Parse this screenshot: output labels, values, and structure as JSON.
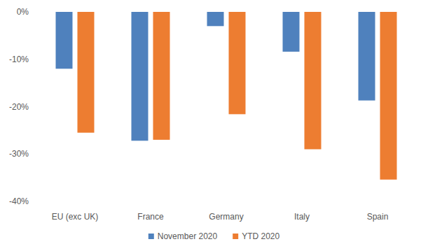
{
  "chart_data": {
    "type": "bar",
    "categories": [
      "EU (exc UK)",
      "France",
      "Germany",
      "Italy",
      "Spain"
    ],
    "series": [
      {
        "name": "November 2020",
        "color": "#4f81bd",
        "values": [
          -12.0,
          -27.2,
          -3.0,
          -8.4,
          -18.7
        ]
      },
      {
        "name": "YTD 2020",
        "color": "#ed7d31",
        "values": [
          -25.5,
          -27.0,
          -21.6,
          -29.0,
          -35.4
        ]
      }
    ],
    "ylim": [
      -40,
      0
    ],
    "yticks": [
      {
        "value": 0,
        "label": "0%"
      },
      {
        "value": -10,
        "label": "-10%"
      },
      {
        "value": -20,
        "label": "-20%"
      },
      {
        "value": -30,
        "label": "-30%"
      },
      {
        "value": -40,
        "label": "-40%"
      }
    ],
    "grid": false,
    "legend": "bottom"
  }
}
